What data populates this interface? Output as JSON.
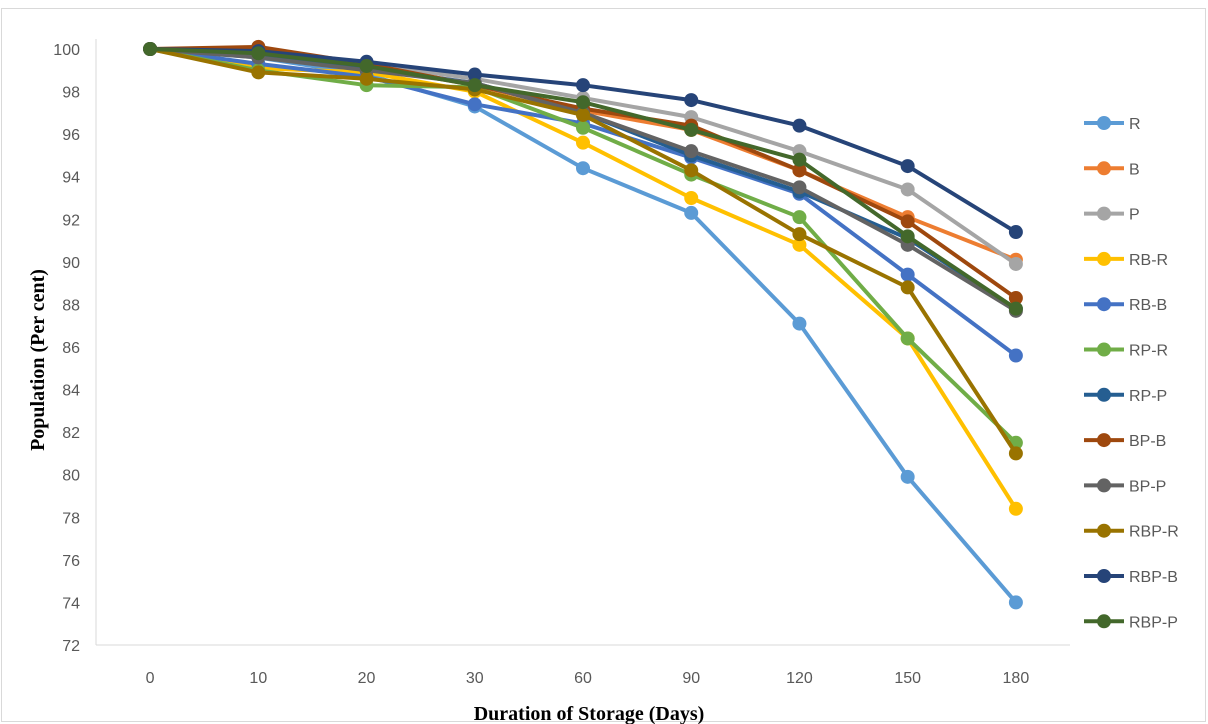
{
  "chart_data": {
    "type": "line",
    "xlabel": "Duration of Storage (Days)",
    "ylabel": "Population (Per cent)",
    "categories": [
      "0",
      "10",
      "20",
      "30",
      "60",
      "90",
      "120",
      "150",
      "180"
    ],
    "ylim": [
      72,
      100
    ],
    "ytick_step": 2,
    "grid": false,
    "legend_position": "right",
    "series": [
      {
        "name": "R",
        "color": "#5B9BD5",
        "values": [
          100,
          99.6,
          98.8,
          97.3,
          94.4,
          92.3,
          87.1,
          79.9,
          74.0
        ]
      },
      {
        "name": "B",
        "color": "#ED7D31",
        "values": [
          100,
          99.9,
          99.2,
          98.3,
          97.1,
          96.2,
          94.3,
          92.1,
          90.1
        ]
      },
      {
        "name": "P",
        "color": "#A5A5A5",
        "values": [
          100,
          99.8,
          99.3,
          98.6,
          97.7,
          96.8,
          95.2,
          93.4,
          89.9
        ]
      },
      {
        "name": "RB-R",
        "color": "#FFC000",
        "values": [
          100,
          99.1,
          98.9,
          98.0,
          95.6,
          93.0,
          90.8,
          86.4,
          78.4
        ]
      },
      {
        "name": "RB-B",
        "color": "#4472C4",
        "values": [
          100,
          99.3,
          98.7,
          97.4,
          96.5,
          94.9,
          93.2,
          89.4,
          85.6
        ]
      },
      {
        "name": "RP-R",
        "color": "#70AD47",
        "values": [
          100,
          99.0,
          98.3,
          98.2,
          96.3,
          94.1,
          92.1,
          86.4,
          81.5
        ]
      },
      {
        "name": "RP-P",
        "color": "#255E91",
        "values": [
          100,
          99.7,
          99.1,
          98.4,
          97.0,
          95.0,
          93.3,
          91.1,
          87.8
        ]
      },
      {
        "name": "BP-B",
        "color": "#9E480E",
        "values": [
          100,
          100.1,
          99.3,
          98.3,
          97.2,
          96.4,
          94.3,
          91.9,
          88.3
        ]
      },
      {
        "name": "BP-P",
        "color": "#636363",
        "values": [
          100,
          99.6,
          99.0,
          98.4,
          97.0,
          95.2,
          93.5,
          90.8,
          87.7
        ]
      },
      {
        "name": "RBP-R",
        "color": "#997300",
        "values": [
          100,
          98.9,
          98.6,
          98.1,
          96.9,
          94.3,
          91.3,
          88.8,
          81.0
        ]
      },
      {
        "name": "RBP-B",
        "color": "#264478",
        "values": [
          100,
          99.9,
          99.4,
          98.8,
          98.3,
          97.6,
          96.4,
          94.5,
          91.4
        ]
      },
      {
        "name": "RBP-P",
        "color": "#43682B",
        "values": [
          100,
          99.8,
          99.2,
          98.3,
          97.5,
          96.2,
          94.8,
          91.2,
          87.8
        ]
      }
    ]
  }
}
